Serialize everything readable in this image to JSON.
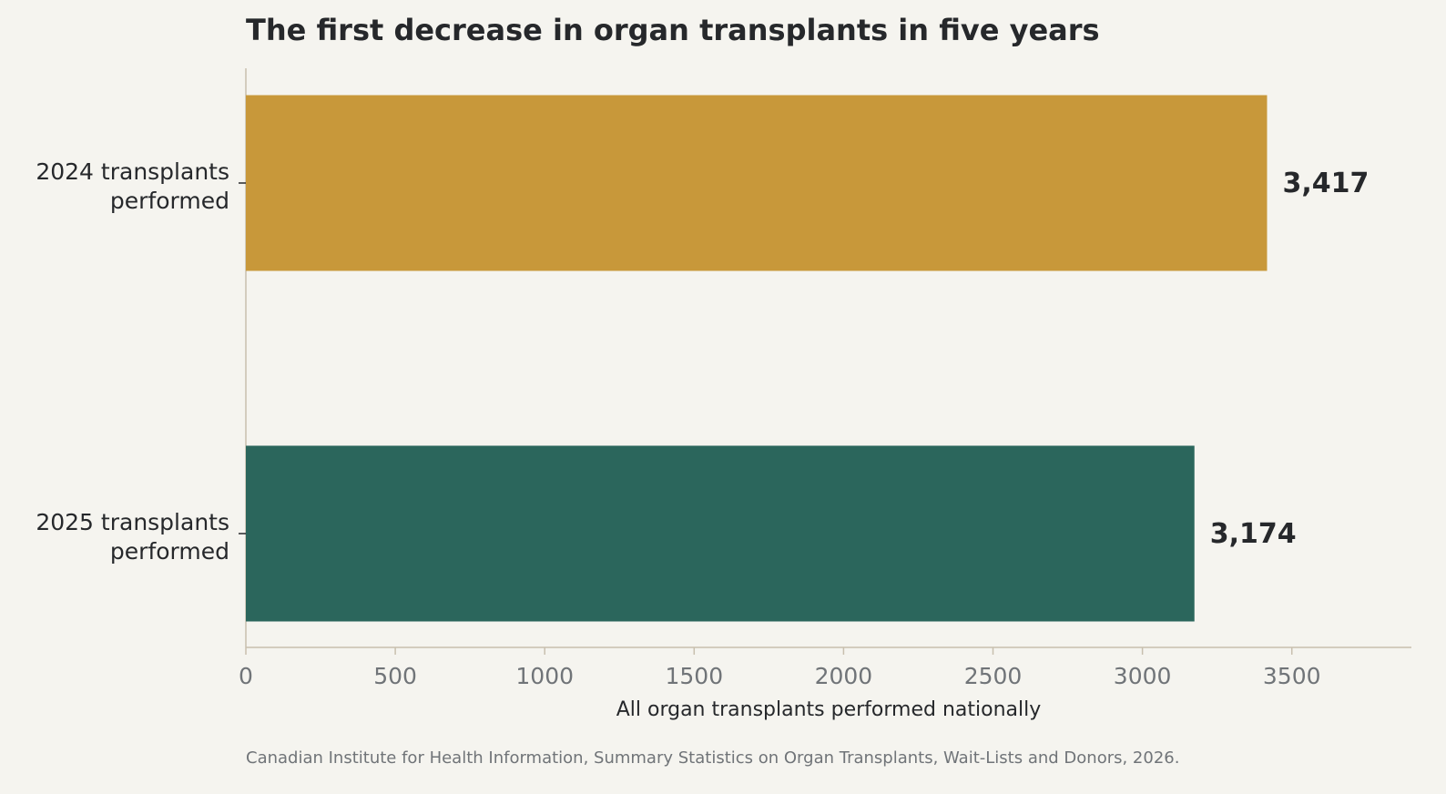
{
  "chart_data": {
    "type": "bar",
    "orientation": "horizontal",
    "title": "The first decrease in organ transplants in five years",
    "xlabel": "All organ transplants performed nationally",
    "ylabel": "",
    "categories": [
      [
        "2024 transplants",
        "performed"
      ],
      [
        "2025 transplants",
        "performed"
      ]
    ],
    "values": [
      3417,
      3174
    ],
    "value_labels": [
      "3,417",
      "3,174"
    ],
    "bar_colors": [
      "#c8983a",
      "#2b665c"
    ],
    "xlim": [
      0,
      3900
    ],
    "xticks": [
      0,
      500,
      1000,
      1500,
      2000,
      2500,
      3000,
      3500
    ],
    "xtick_labels": [
      "0",
      "500",
      "1000",
      "1500",
      "2000",
      "2500",
      "3000",
      "3500"
    ],
    "grid": false,
    "legend": "none",
    "source": "Canadian Institute for Health Information, Summary Statistics on Organ Transplants, Wait-Lists and Donors, 2026."
  },
  "colors": {
    "background": "#f5f4ef",
    "axis": "#c8bfae",
    "text": "#26282b",
    "muted": "#707478"
  }
}
